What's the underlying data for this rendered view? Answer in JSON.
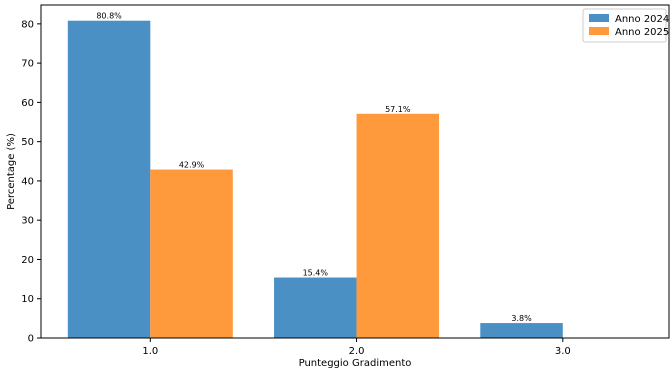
{
  "chart_data": {
    "type": "bar",
    "categories": [
      "1.0",
      "2.0",
      "3.0"
    ],
    "series": [
      {
        "name": "Anno 2024",
        "color": "#4a90c4",
        "values": [
          80.8,
          15.4,
          3.8
        ],
        "labels": [
          "80.8%",
          "15.4%",
          "3.8%"
        ]
      },
      {
        "name": "Anno 2025",
        "color": "#ff9a3c",
        "values": [
          42.9,
          57.1,
          0
        ],
        "labels": [
          "42.9%",
          "57.1%",
          ""
        ]
      }
    ],
    "title": "",
    "xlabel": "Punteggio Gradimento",
    "ylabel": "Percentage (%)",
    "ylim": [
      0,
      84.8
    ],
    "yticks": [
      0,
      10,
      20,
      30,
      40,
      50,
      60,
      70,
      80
    ],
    "yticklabels": [
      "0",
      "10",
      "20",
      "30",
      "40",
      "50",
      "60",
      "70",
      "80"
    ],
    "grid": false,
    "legend_position": "top-right"
  }
}
